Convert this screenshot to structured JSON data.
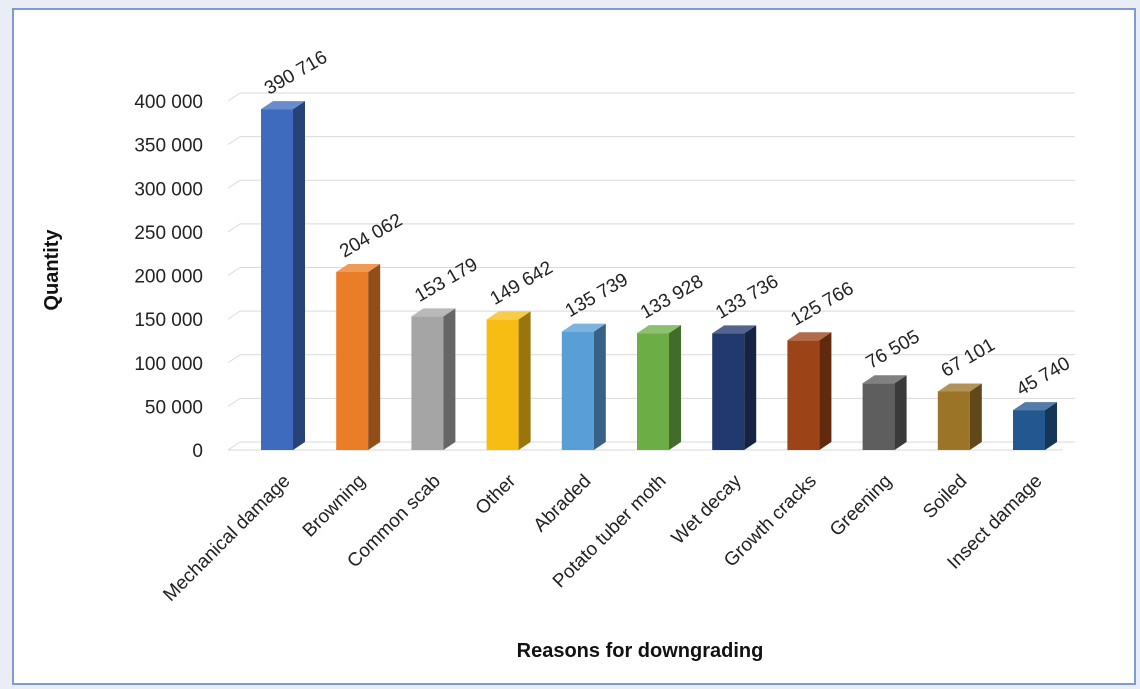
{
  "chart_data": {
    "type": "bar",
    "title": "",
    "xlabel": "Reasons for downgrading",
    "ylabel": "Quantity",
    "ylim": [
      0,
      400000
    ],
    "yticks": [
      0,
      50000,
      100000,
      150000,
      200000,
      250000,
      300000,
      350000,
      400000
    ],
    "ytick_labels": [
      "0",
      "50 000",
      "100 000",
      "150 000",
      "200 000",
      "250 000",
      "300 000",
      "350 000",
      "400 000"
    ],
    "grid": true,
    "style": "3d-column",
    "categories": [
      "Mechanical damage",
      "Browning",
      "Common scab",
      "Other",
      "Abraded",
      "Potato tuber moth",
      "Wet decay",
      "Growth cracks",
      "Greening",
      "Soiled",
      "Insect damage"
    ],
    "values": [
      390716,
      204062,
      153179,
      149642,
      135739,
      133928,
      133736,
      125766,
      76505,
      67101,
      45740
    ],
    "value_labels": [
      "390 716",
      "204 062",
      "153 179",
      "149 642",
      "135 739",
      "133 928",
      "133 736",
      "125 766",
      "76 505",
      "67 101",
      "45 740"
    ],
    "colors": [
      "#3f6bbf",
      "#ea7d27",
      "#a5a5a5",
      "#f7bd13",
      "#5a9ed7",
      "#6cae45",
      "#22396f",
      "#9c4318",
      "#5e5e5e",
      "#9b7427",
      "#22578f"
    ]
  }
}
